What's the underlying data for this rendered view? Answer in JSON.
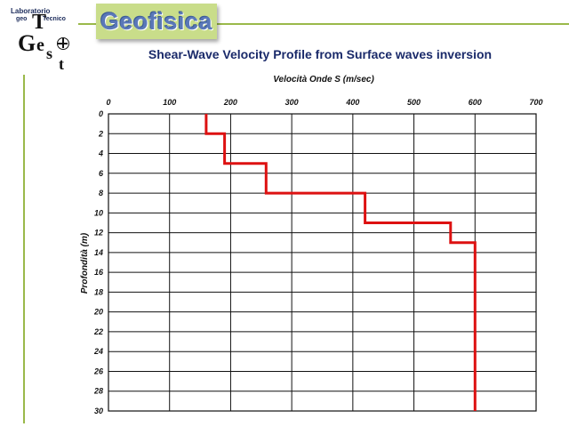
{
  "header": {
    "logo": {
      "line1": "Laboratorio",
      "geo": "geo",
      "tecnico": "Tecnico",
      "letters": [
        "T",
        "G",
        "e",
        "s",
        "t"
      ]
    },
    "badge_label": "Geofisica",
    "accent_color": "#c9dd8a",
    "rule_color": "#9ab94a"
  },
  "chart_data": {
    "type": "line",
    "title": "Shear-Wave Velocity Profile from Surface waves inversion",
    "xlabel": "Velocità Onde S (m/sec)",
    "ylabel": "Profondità (m)",
    "xlim": [
      0,
      700
    ],
    "ylim": [
      0,
      30
    ],
    "y_inverted": true,
    "x_axis_position": "top",
    "x_ticks": [
      0,
      100,
      200,
      300,
      400,
      500,
      600,
      700
    ],
    "y_ticks": [
      0,
      2,
      4,
      6,
      8,
      10,
      12,
      14,
      16,
      18,
      20,
      22,
      24,
      26,
      28,
      30
    ],
    "grid": true,
    "line_color": "#dd1111",
    "series": [
      {
        "points": [
          [
            160,
            0
          ],
          [
            160,
            2
          ],
          [
            190,
            2
          ],
          [
            190,
            5
          ],
          [
            258,
            5
          ],
          [
            258,
            8
          ],
          [
            420,
            8
          ],
          [
            420,
            11
          ],
          [
            560,
            11
          ],
          [
            560,
            13
          ],
          [
            600,
            13
          ],
          [
            600,
            30
          ]
        ]
      }
    ]
  }
}
